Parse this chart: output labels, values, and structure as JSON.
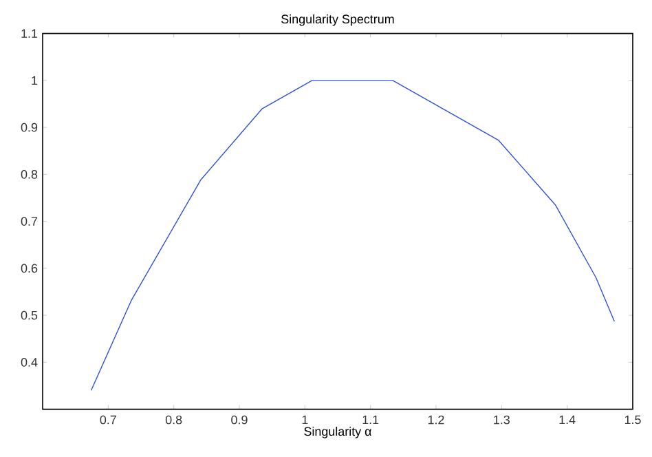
{
  "chart_data": {
    "type": "line",
    "title": "Singularity Spectrum",
    "xlabel": "Singularity α",
    "x": [
      0.674,
      0.735,
      0.841,
      0.935,
      1.011,
      1.134,
      1.295,
      1.382,
      1.444,
      1.472
    ],
    "values": [
      0.34,
      0.531,
      0.788,
      0.94,
      1.0,
      1.0,
      0.873,
      0.735,
      0.58,
      0.487
    ],
    "color": "#3050e0",
    "xlim": [
      0.6,
      1.5
    ],
    "ylim": [
      0.3,
      1.1
    ],
    "xticks": [
      0.7,
      0.8,
      0.9,
      1,
      1.1,
      1.2,
      1.3,
      1.4,
      1.5
    ],
    "yticks": [
      0.4,
      0.5,
      0.6,
      0.7,
      0.8,
      0.9,
      1,
      1.1
    ],
    "grid": false,
    "marker": "none",
    "line_style": "solid"
  }
}
